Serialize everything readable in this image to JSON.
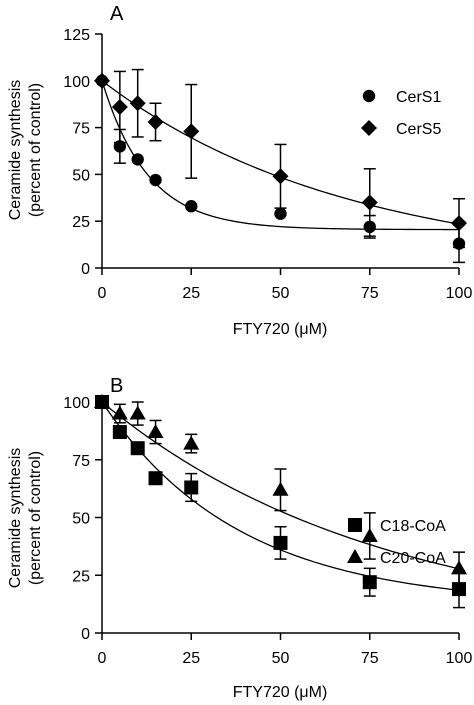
{
  "chart_data": [
    {
      "type": "scatter",
      "panel_label": "A",
      "xlabel": "FTY720 (μM)",
      "ylabel": [
        "Ceramide synthesis",
        "(percent of control)"
      ],
      "xlim": [
        0,
        100
      ],
      "ylim": [
        0,
        125
      ],
      "xticks": [
        0,
        25,
        50,
        75,
        100
      ],
      "yticks": [
        0,
        25,
        50,
        75,
        100,
        125
      ],
      "grid": false,
      "legend_position": "top-right",
      "fit_curves": true,
      "series": [
        {
          "name": "CerS1",
          "marker": "circle",
          "x": [
            0,
            5,
            10,
            15,
            25,
            50,
            75,
            100
          ],
          "y": [
            100,
            65,
            58,
            47,
            33,
            29,
            22,
            13
          ],
          "error": [
            0,
            9,
            0,
            0,
            0,
            0,
            6,
            10
          ],
          "fit": {
            "plateau": 20.5,
            "k": 0.078
          }
        },
        {
          "name": "CerS5",
          "marker": "diamond",
          "x": [
            0,
            5,
            10,
            15,
            25,
            50,
            75,
            100
          ],
          "y": [
            100,
            86,
            88,
            78,
            73,
            49,
            35,
            24
          ],
          "error": [
            0,
            19,
            18,
            10,
            25,
            17,
            18,
            13
          ],
          "fit": {
            "plateau": 0,
            "k": 0.0145
          }
        }
      ]
    },
    {
      "type": "scatter",
      "panel_label": "B",
      "xlabel": "FTY720 (μM)",
      "ylabel": [
        "Ceramide synthesis",
        "(percent of control)"
      ],
      "xlim": [
        0,
        100
      ],
      "ylim": [
        0,
        100
      ],
      "xticks": [
        0,
        25,
        50,
        75,
        100
      ],
      "yticks": [
        0,
        25,
        50,
        75,
        100
      ],
      "grid": false,
      "legend_position": "right",
      "fit_curves": true,
      "series": [
        {
          "name": "C18-CoA",
          "marker": "square",
          "x": [
            0,
            5,
            10,
            15,
            25,
            50,
            75,
            100
          ],
          "y": [
            100,
            87,
            80,
            67,
            63,
            39,
            22,
            19
          ],
          "error": [
            0,
            0,
            0,
            0,
            6,
            7,
            6,
            8
          ],
          "fit": {
            "plateau": 12,
            "k": 0.026
          }
        },
        {
          "name": "C20-CoA",
          "marker": "triangle",
          "x": [
            0,
            5,
            10,
            15,
            25,
            50,
            75,
            100
          ],
          "y": [
            100,
            95,
            95,
            87,
            82,
            62,
            42,
            28
          ],
          "error": [
            0,
            4,
            5,
            5,
            4,
            9,
            10,
            7
          ],
          "fit": {
            "plateau": 0,
            "k": 0.0128
          }
        }
      ]
    }
  ]
}
